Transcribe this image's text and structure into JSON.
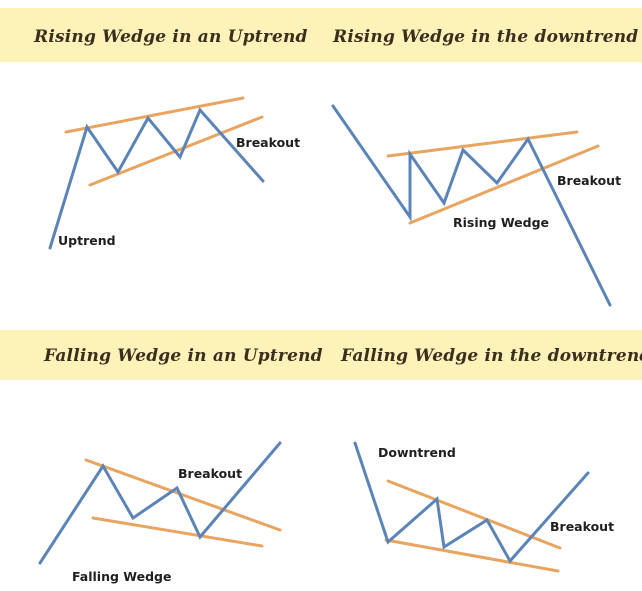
{
  "headings": {
    "top_left": "Rising Wedge in an Uptrend",
    "top_right": "Rising Wedge in the downtrend",
    "bottom_left": "Falling Wedge in an Uptrend",
    "bottom_right": "Falling Wedge in the downtrend"
  },
  "labels": {
    "tl_uptrend": "Uptrend",
    "tl_breakout": "Breakout",
    "tr_breakout": "Breakout",
    "tr_rising_wedge": "Rising Wedge",
    "bl_breakout": "Breakout",
    "bl_falling_wedge": "Falling Wedge",
    "br_downtrend": "Downtrend",
    "br_breakout": "Breakout"
  },
  "colors": {
    "band": "#fdf2b8",
    "price_line": "#5b84b8",
    "trend_line": "#e9a560",
    "heading_text": "#3a2e1e"
  }
}
